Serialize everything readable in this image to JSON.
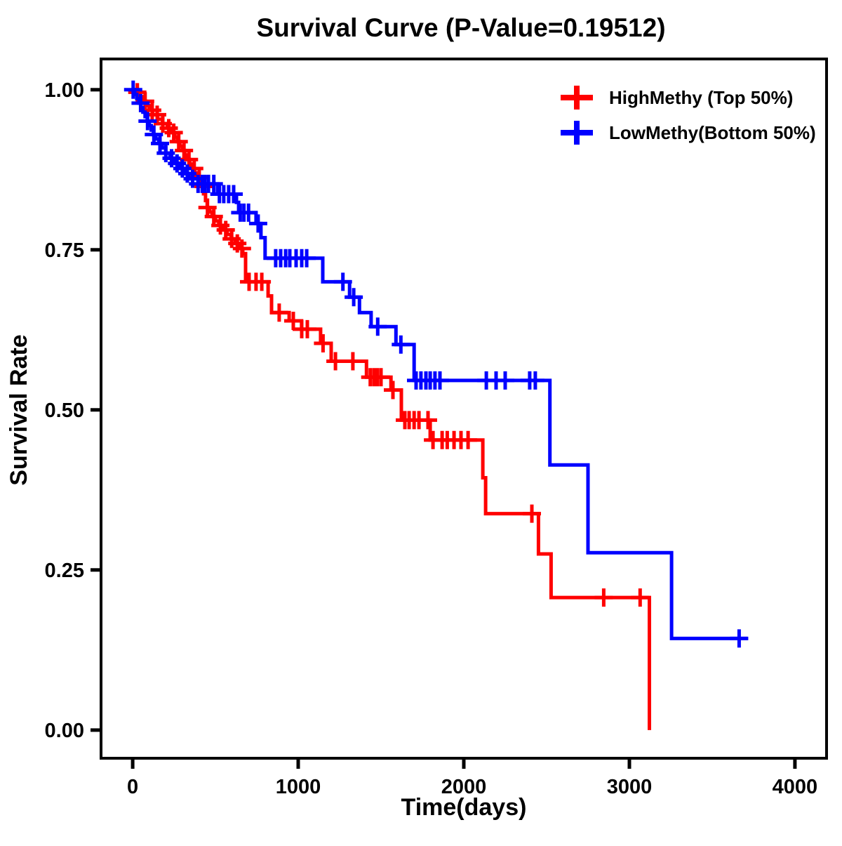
{
  "chart_data": {
    "type": "line",
    "subtype": "kaplan-meier-step-survival",
    "title": "Survival Curve (P-Value=0.19512)",
    "p_value": 0.19512,
    "xlabel": "Time(days)",
    "ylabel": "Survival Rate",
    "xlim": [
      -191,
      4191
    ],
    "ylim": [
      -0.044,
      1.048
    ],
    "x_ticks": [
      0,
      1000,
      2000,
      3000,
      4000
    ],
    "x_tick_labels": [
      "0",
      "1000",
      "2000",
      "3000",
      "4000"
    ],
    "y_ticks": [
      0,
      0.25,
      0.5,
      0.75,
      1
    ],
    "y_tick_labels": [
      "0.00",
      "0.25",
      "0.50",
      "0.75",
      "1.00"
    ],
    "grid": false,
    "legend_position": "top-right",
    "frame": "box",
    "series": [
      {
        "name": "HighMethy (Top 50%)",
        "color": "#FF0000",
        "marker": "plus-censor",
        "end_time": 3121,
        "steps": [
          [
            0,
            1.0
          ],
          [
            20,
            0.996
          ],
          [
            40,
            0.989
          ],
          [
            60,
            0.982
          ],
          [
            80,
            0.975
          ],
          [
            100,
            0.968
          ],
          [
            120,
            0.961
          ],
          [
            150,
            0.954
          ],
          [
            180,
            0.947
          ],
          [
            210,
            0.94
          ],
          [
            235,
            0.933
          ],
          [
            255,
            0.926
          ],
          [
            270,
            0.919
          ],
          [
            285,
            0.912
          ],
          [
            300,
            0.905
          ],
          [
            315,
            0.898
          ],
          [
            330,
            0.891
          ],
          [
            345,
            0.884
          ],
          [
            360,
            0.877
          ],
          [
            375,
            0.87
          ],
          [
            390,
            0.863
          ],
          [
            405,
            0.856
          ],
          [
            420,
            0.849
          ],
          [
            430,
            0.838
          ],
          [
            440,
            0.827
          ],
          [
            450,
            0.816
          ],
          [
            465,
            0.809
          ],
          [
            480,
            0.802
          ],
          [
            500,
            0.795
          ],
          [
            520,
            0.788
          ],
          [
            545,
            0.781
          ],
          [
            570,
            0.774
          ],
          [
            595,
            0.767
          ],
          [
            620,
            0.76
          ],
          [
            645,
            0.752
          ],
          [
            665,
            0.744
          ],
          [
            682,
            0.7
          ],
          [
            818,
            0.678
          ],
          [
            839,
            0.652
          ],
          [
            945,
            0.639
          ],
          [
            1020,
            0.626
          ],
          [
            1135,
            0.604
          ],
          [
            1199,
            0.576
          ],
          [
            1412,
            0.551
          ],
          [
            1560,
            0.531
          ],
          [
            1623,
            0.484
          ],
          [
            1797,
            0.453
          ],
          [
            2115,
            0.394
          ],
          [
            2132,
            0.338
          ],
          [
            2451,
            0.275
          ],
          [
            2527,
            0.207
          ],
          [
            3121,
            0.0
          ]
        ],
        "censor_times": [
          28,
          75,
          118,
          148,
          182,
          218,
          248,
          278,
          310,
          340,
          372,
          402,
          428,
          452,
          490,
          530,
          562,
          598,
          632,
          660,
          703,
          745,
          780,
          885,
          970,
          1021,
          1055,
          1150,
          1225,
          1330,
          1435,
          1457,
          1478,
          1500,
          1572,
          1644,
          1670,
          1700,
          1729,
          1784,
          1814,
          1869,
          1900,
          1941,
          1983,
          2026,
          2411,
          2845,
          3065
        ]
      },
      {
        "name": "LowMethy(Bottom 50%)",
        "color": "#0000FF",
        "marker": "plus-censor",
        "end_time": 3714,
        "steps": [
          [
            0,
            1.0
          ],
          [
            12,
            0.993
          ],
          [
            25,
            0.986
          ],
          [
            38,
            0.979
          ],
          [
            50,
            0.972
          ],
          [
            62,
            0.965
          ],
          [
            75,
            0.958
          ],
          [
            88,
            0.951
          ],
          [
            100,
            0.944
          ],
          [
            112,
            0.937
          ],
          [
            125,
            0.93
          ],
          [
            140,
            0.923
          ],
          [
            158,
            0.916
          ],
          [
            178,
            0.909
          ],
          [
            200,
            0.901
          ],
          [
            225,
            0.893
          ],
          [
            252,
            0.885
          ],
          [
            280,
            0.877
          ],
          [
            310,
            0.869
          ],
          [
            340,
            0.861
          ],
          [
            395,
            0.853
          ],
          [
            513,
            0.837
          ],
          [
            627,
            0.824
          ],
          [
            640,
            0.808
          ],
          [
            745,
            0.791
          ],
          [
            775,
            0.769
          ],
          [
            800,
            0.737
          ],
          [
            1148,
            0.7
          ],
          [
            1310,
            0.676
          ],
          [
            1370,
            0.652
          ],
          [
            1440,
            0.63
          ],
          [
            1590,
            0.602
          ],
          [
            1700,
            0.546
          ],
          [
            2520,
            0.414
          ],
          [
            2750,
            0.277
          ],
          [
            3255,
            0.143
          ]
        ],
        "censor_times": [
          3,
          48,
          90,
          128,
          165,
          200,
          235,
          268,
          300,
          330,
          362,
          395,
          420,
          436,
          458,
          490,
          524,
          550,
          580,
          610,
          650,
          672,
          700,
          758,
          864,
          894,
          924,
          949,
          987,
          1021,
          1051,
          1270,
          1335,
          1480,
          1620,
          1712,
          1741,
          1771,
          1797,
          1826,
          1856,
          2136,
          2195,
          2250,
          2398,
          2432,
          3663
        ]
      }
    ]
  }
}
